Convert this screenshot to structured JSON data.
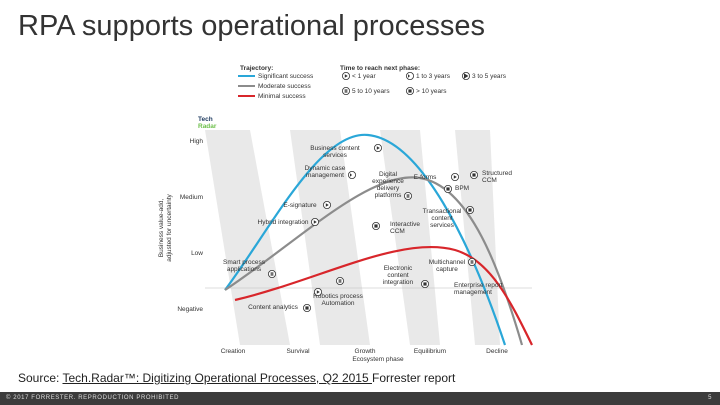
{
  "title": "RPA supports operational processes",
  "radar": {
    "brand": [
      "Tech",
      "Radar"
    ],
    "y_axis_title": [
      "Business value-add,",
      "adjusted for uncertainty"
    ],
    "y_levels": [
      "High",
      "Medium",
      "Low",
      "Negative"
    ],
    "phases": [
      "Creation",
      "Survival",
      "Growth",
      "Equilibrium",
      "Decline"
    ],
    "x_axis_title": "Ecosystem phase",
    "trajectory_title": "Trajectory:",
    "trajectories": [
      {
        "name": "Significant success",
        "color": "#2aa7d8"
      },
      {
        "name": "Moderate success",
        "color": "#8c8c8c"
      },
      {
        "name": "Minimal success",
        "color": "#d8262b"
      }
    ],
    "time_title": "Time to reach next phase:",
    "times": [
      "< 1 year",
      "1 to 3 years",
      "3 to 5 years",
      "5 to 10 years",
      "> 10 years"
    ],
    "items": [
      {
        "label": [
          "Business content",
          "services"
        ]
      },
      {
        "label": [
          "Dynamic case",
          "management"
        ]
      },
      {
        "label": [
          "Digital",
          "experience",
          "delivery",
          "platforms"
        ]
      },
      {
        "label": [
          "E-forms"
        ]
      },
      {
        "label": [
          "BPM"
        ]
      },
      {
        "label": [
          "Structured",
          "CCM"
        ]
      },
      {
        "label": [
          "E-signature"
        ]
      },
      {
        "label": [
          "Hybrid integration"
        ]
      },
      {
        "label": [
          "Interactive",
          "CCM"
        ]
      },
      {
        "label": [
          "Transactional",
          "content",
          "services"
        ]
      },
      {
        "label": [
          "Smart process",
          "applications"
        ]
      },
      {
        "label": [
          "Electronic",
          "content",
          "integration"
        ]
      },
      {
        "label": [
          "Multichannel",
          "capture"
        ]
      },
      {
        "label": [
          "Enterprise report",
          "management"
        ]
      },
      {
        "label": [
          "Robotics process",
          "Automation"
        ]
      },
      {
        "label": [
          "Content analytics"
        ]
      }
    ]
  },
  "source": {
    "prefix": "Source: ",
    "link": "Tech.Radar™: Digitizing Operational Processes, Q2 2015 ",
    "suffix": "Forrester report"
  },
  "footer": {
    "copyright": "© 2017 FORRESTER. REPRODUCTION PROHIBITED",
    "page": "5"
  }
}
